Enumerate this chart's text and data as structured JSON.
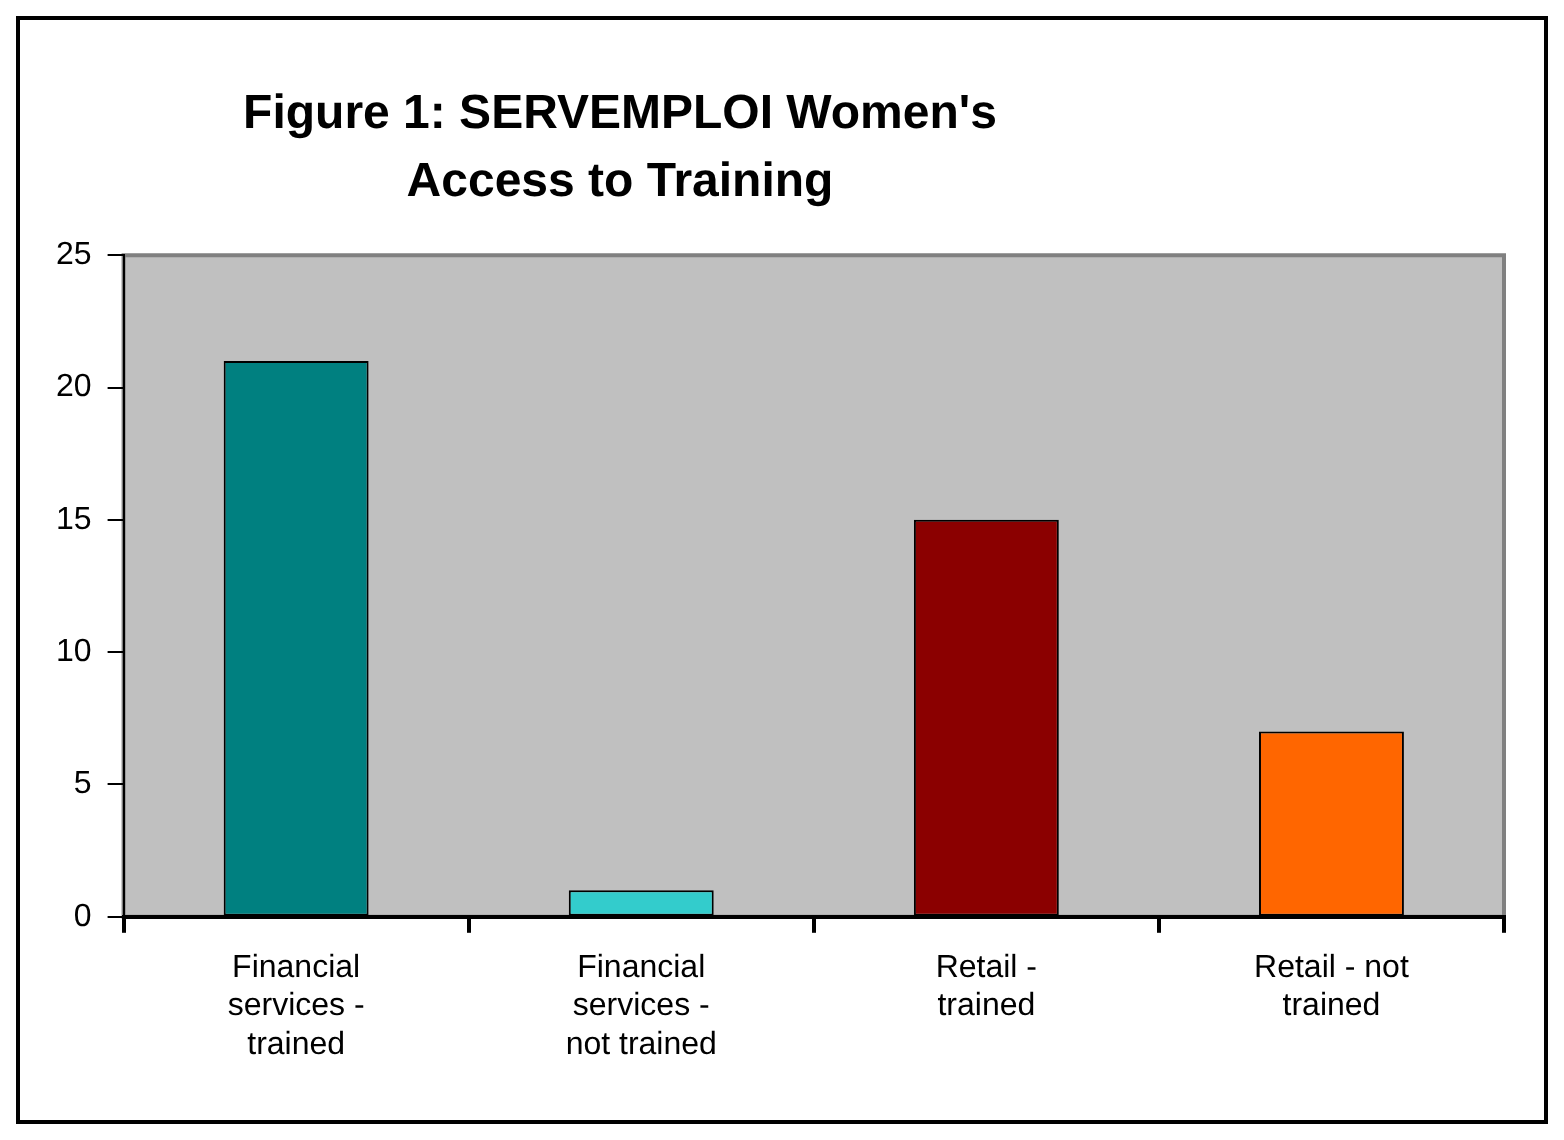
{
  "chart_data": {
    "type": "bar",
    "title": "Figure 1: SERVEMPLOI Women's Access to Training",
    "categories": [
      "Financial services - trained",
      "Financial services - not trained",
      "Retail - trained",
      "Retail - not trained"
    ],
    "values": [
      21,
      1,
      15,
      7
    ],
    "colors": [
      "#008080",
      "#33cccc",
      "#8b0000",
      "#ff6600"
    ],
    "ylim": [
      0,
      25
    ],
    "yticks": [
      0,
      5,
      10,
      15,
      20,
      25
    ],
    "legend": false
  }
}
